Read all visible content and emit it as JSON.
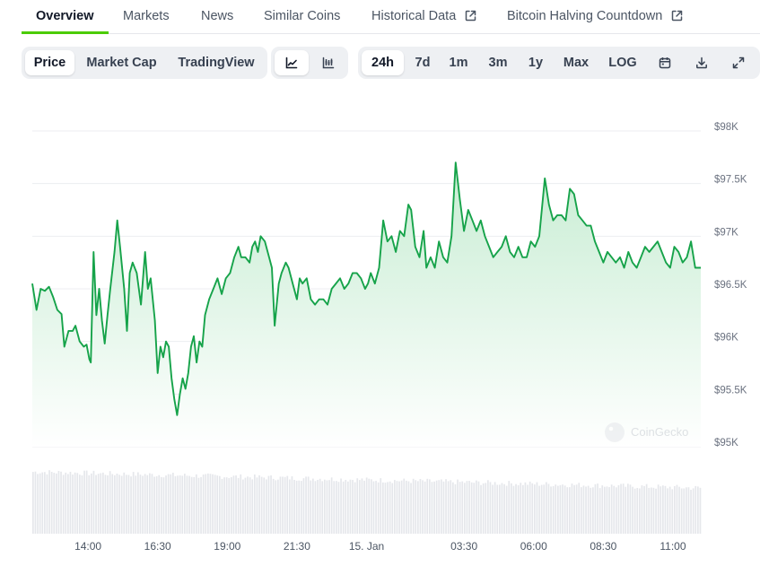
{
  "tabs": [
    {
      "label": "Overview",
      "active": true
    },
    {
      "label": "Markets"
    },
    {
      "label": "News"
    },
    {
      "label": "Similar Coins"
    },
    {
      "label": "Historical Data",
      "external": true
    },
    {
      "label": "Bitcoin Halving Countdown",
      "external": true
    }
  ],
  "chart_modes": [
    "Price",
    "Market Cap",
    "TradingView"
  ],
  "chart_modes_selected": "Price",
  "chart_styles": [
    "line-chart-icon",
    "candlestick-icon"
  ],
  "ranges": [
    "24h",
    "7d",
    "1m",
    "3m",
    "1y",
    "Max",
    "LOG"
  ],
  "range_selected": "24h",
  "tool_icons": [
    "calendar-icon",
    "download-icon",
    "expand-icon"
  ],
  "watermark": "CoinGecko",
  "colors": {
    "line": "#16a34a",
    "area_top": "#d8f2df",
    "volume": "#e5e7eb",
    "accent": "#4bcc00"
  },
  "chart_data": {
    "type": "area",
    "y_ticks": [
      "$98K",
      "$97.5K",
      "$97K",
      "$96.5K",
      "$96K",
      "$95.5K",
      "$95K"
    ],
    "ylim": [
      95000,
      98000
    ],
    "x_ticks": [
      {
        "label": "14:00",
        "x": 2.0
      },
      {
        "label": "16:30",
        "x": 4.5
      },
      {
        "label": "19:00",
        "x": 7.0
      },
      {
        "label": "21:30",
        "x": 9.5
      },
      {
        "label": "15. Jan",
        "x": 12.0
      },
      {
        "label": "03:30",
        "x": 15.5
      },
      {
        "label": "06:00",
        "x": 18.0
      },
      {
        "label": "08:30",
        "x": 20.5
      },
      {
        "label": "11:00",
        "x": 23.0
      }
    ],
    "x_range": [
      0,
      24
    ],
    "price_series": [
      [
        0.0,
        96550
      ],
      [
        0.15,
        96300
      ],
      [
        0.3,
        96500
      ],
      [
        0.45,
        96480
      ],
      [
        0.6,
        96520
      ],
      [
        0.75,
        96420
      ],
      [
        0.9,
        96300
      ],
      [
        1.05,
        96260
      ],
      [
        1.15,
        95950
      ],
      [
        1.3,
        96100
      ],
      [
        1.45,
        96100
      ],
      [
        1.55,
        96150
      ],
      [
        1.7,
        96000
      ],
      [
        1.85,
        95950
      ],
      [
        1.95,
        95970
      ],
      [
        2.05,
        95830
      ],
      [
        2.1,
        95800
      ],
      [
        2.2,
        96850
      ],
      [
        2.3,
        96250
      ],
      [
        2.4,
        96500
      ],
      [
        2.5,
        96200
      ],
      [
        2.6,
        95980
      ],
      [
        2.7,
        96250
      ],
      [
        2.8,
        96500
      ],
      [
        2.95,
        96850
      ],
      [
        3.05,
        97150
      ],
      [
        3.15,
        96900
      ],
      [
        3.3,
        96500
      ],
      [
        3.4,
        96100
      ],
      [
        3.5,
        96650
      ],
      [
        3.6,
        96750
      ],
      [
        3.75,
        96650
      ],
      [
        3.9,
        96350
      ],
      [
        4.05,
        96850
      ],
      [
        4.15,
        96500
      ],
      [
        4.25,
        96600
      ],
      [
        4.4,
        96200
      ],
      [
        4.5,
        95700
      ],
      [
        4.6,
        95950
      ],
      [
        4.7,
        95850
      ],
      [
        4.8,
        96000
      ],
      [
        4.9,
        95950
      ],
      [
        5.0,
        95650
      ],
      [
        5.1,
        95450
      ],
      [
        5.2,
        95300
      ],
      [
        5.3,
        95500
      ],
      [
        5.4,
        95650
      ],
      [
        5.5,
        95550
      ],
      [
        5.6,
        95700
      ],
      [
        5.7,
        95950
      ],
      [
        5.8,
        96050
      ],
      [
        5.9,
        95800
      ],
      [
        6.0,
        96000
      ],
      [
        6.1,
        95950
      ],
      [
        6.2,
        96250
      ],
      [
        6.35,
        96400
      ],
      [
        6.5,
        96500
      ],
      [
        6.65,
        96600
      ],
      [
        6.8,
        96450
      ],
      [
        6.95,
        96600
      ],
      [
        7.1,
        96650
      ],
      [
        7.25,
        96800
      ],
      [
        7.4,
        96900
      ],
      [
        7.5,
        96800
      ],
      [
        7.65,
        96800
      ],
      [
        7.8,
        96750
      ],
      [
        7.9,
        96900
      ],
      [
        8.0,
        96950
      ],
      [
        8.1,
        96850
      ],
      [
        8.2,
        97000
      ],
      [
        8.35,
        96950
      ],
      [
        8.5,
        96800
      ],
      [
        8.6,
        96700
      ],
      [
        8.7,
        96150
      ],
      [
        8.85,
        96550
      ],
      [
        8.95,
        96650
      ],
      [
        9.1,
        96750
      ],
      [
        9.2,
        96700
      ],
      [
        9.35,
        96550
      ],
      [
        9.5,
        96400
      ],
      [
        9.6,
        96600
      ],
      [
        9.7,
        96550
      ],
      [
        9.85,
        96600
      ],
      [
        10.0,
        96400
      ],
      [
        10.15,
        96350
      ],
      [
        10.3,
        96400
      ],
      [
        10.45,
        96400
      ],
      [
        10.6,
        96350
      ],
      [
        10.75,
        96500
      ],
      [
        10.9,
        96550
      ],
      [
        11.05,
        96600
      ],
      [
        11.2,
        96500
      ],
      [
        11.35,
        96550
      ],
      [
        11.5,
        96650
      ],
      [
        11.65,
        96650
      ],
      [
        11.8,
        96600
      ],
      [
        11.95,
        96500
      ],
      [
        12.05,
        96550
      ],
      [
        12.15,
        96650
      ],
      [
        12.3,
        96550
      ],
      [
        12.45,
        96700
      ],
      [
        12.6,
        97150
      ],
      [
        12.75,
        96950
      ],
      [
        12.9,
        97000
      ],
      [
        13.05,
        96850
      ],
      [
        13.2,
        97050
      ],
      [
        13.35,
        97000
      ],
      [
        13.5,
        97300
      ],
      [
        13.6,
        97250
      ],
      [
        13.75,
        96900
      ],
      [
        13.9,
        96800
      ],
      [
        14.05,
        97050
      ],
      [
        14.15,
        96700
      ],
      [
        14.3,
        96800
      ],
      [
        14.45,
        96700
      ],
      [
        14.6,
        96950
      ],
      [
        14.75,
        96800
      ],
      [
        14.9,
        96750
      ],
      [
        15.05,
        97000
      ],
      [
        15.2,
        97700
      ],
      [
        15.35,
        97350
      ],
      [
        15.5,
        97050
      ],
      [
        15.65,
        97250
      ],
      [
        15.8,
        97150
      ],
      [
        15.95,
        97050
      ],
      [
        16.1,
        97150
      ],
      [
        16.25,
        97000
      ],
      [
        16.4,
        96900
      ],
      [
        16.55,
        96800
      ],
      [
        16.7,
        96850
      ],
      [
        16.85,
        96900
      ],
      [
        17.0,
        97000
      ],
      [
        17.15,
        96850
      ],
      [
        17.3,
        96800
      ],
      [
        17.45,
        96900
      ],
      [
        17.6,
        96800
      ],
      [
        17.75,
        96800
      ],
      [
        17.9,
        96950
      ],
      [
        18.05,
        96900
      ],
      [
        18.2,
        97000
      ],
      [
        18.4,
        97550
      ],
      [
        18.55,
        97300
      ],
      [
        18.7,
        97150
      ],
      [
        18.85,
        97200
      ],
      [
        19.0,
        97200
      ],
      [
        19.15,
        97150
      ],
      [
        19.3,
        97450
      ],
      [
        19.45,
        97400
      ],
      [
        19.6,
        97200
      ],
      [
        19.75,
        97150
      ],
      [
        19.9,
        97100
      ],
      [
        20.05,
        97100
      ],
      [
        20.2,
        96950
      ],
      [
        20.35,
        96850
      ],
      [
        20.5,
        96750
      ],
      [
        20.65,
        96850
      ],
      [
        20.8,
        96800
      ],
      [
        20.95,
        96750
      ],
      [
        21.1,
        96800
      ],
      [
        21.25,
        96700
      ],
      [
        21.4,
        96850
      ],
      [
        21.55,
        96750
      ],
      [
        21.7,
        96700
      ],
      [
        21.85,
        96800
      ],
      [
        22.0,
        96900
      ],
      [
        22.15,
        96850
      ],
      [
        22.3,
        96900
      ],
      [
        22.45,
        96950
      ],
      [
        22.6,
        96850
      ],
      [
        22.75,
        96750
      ],
      [
        22.9,
        96700
      ],
      [
        23.05,
        96900
      ],
      [
        23.2,
        96850
      ],
      [
        23.35,
        96750
      ],
      [
        23.5,
        96800
      ],
      [
        23.65,
        96950
      ],
      [
        23.8,
        96700
      ],
      [
        24.0,
        96700
      ]
    ]
  }
}
